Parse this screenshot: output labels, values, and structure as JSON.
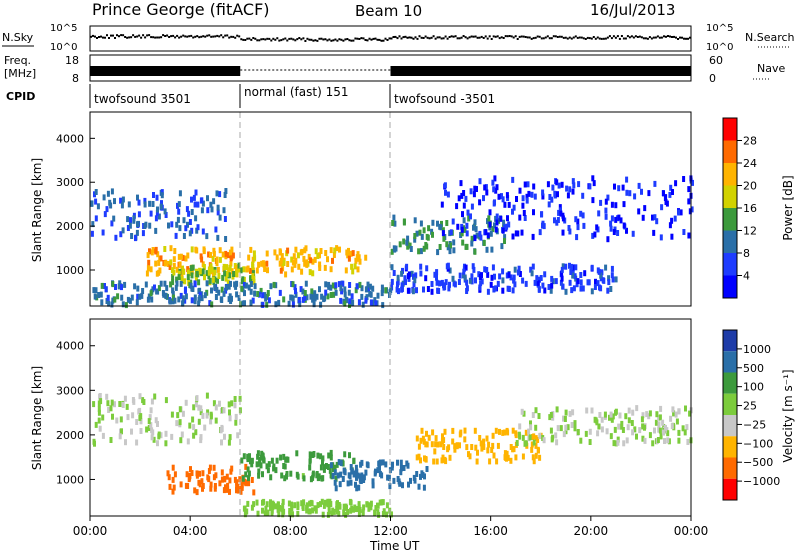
{
  "header": {
    "station": "Prince George (fitACF)",
    "beam": "Beam 10",
    "date": "16/Jul/2013"
  },
  "status_panels": {
    "nsky_label": "N.Sky",
    "nsearch_label": "N.Search",
    "noise_ticks": [
      "10^5",
      "10^0"
    ],
    "freq_label_top": "Freq.",
    "freq_label_unit": "[MHz]",
    "freq_ticks": [
      "18",
      "8"
    ],
    "nave_label": "Nave",
    "nave_ticks": [
      "60",
      "0"
    ],
    "cpid_label": "CPID",
    "cpid_segments": [
      {
        "label": "twofsound 3501",
        "start_hour": 0,
        "end_hour": 6
      },
      {
        "label": "normal (fast) 151",
        "start_hour": 6,
        "end_hour": 12
      },
      {
        "label": "twofsound -3501",
        "start_hour": 12,
        "end_hour": 24
      }
    ]
  },
  "axes": {
    "ylabel": "Slant Range [km]",
    "xlabel": "Time UT",
    "y_ticks": [
      "4000",
      "3000",
      "2000",
      "1000"
    ],
    "x_ticks": [
      "00:00",
      "04:00",
      "08:00",
      "12:00",
      "16:00",
      "20:00",
      "00:00"
    ]
  },
  "power_colorbar": {
    "label": "Power [dB]",
    "ticks": [
      "28",
      "24",
      "20",
      "16",
      "12",
      "8",
      "4"
    ],
    "colors": [
      "#ff0000",
      "#ff6a00",
      "#ffb400",
      "#d2d200",
      "#3c9a3c",
      "#2a6fa8",
      "#1e3cff",
      "#0000ff"
    ]
  },
  "velocity_colorbar": {
    "label": "Velocity [m s⁻¹]",
    "ticks": [
      "1000",
      "500",
      "100",
      "25",
      "−25",
      "−100",
      "−500",
      "−1000"
    ],
    "colors": [
      "#1e3ca8",
      "#2a6fa8",
      "#3c9a3c",
      "#7ccc3c",
      "#c8c8c8",
      "#ffb400",
      "#ff6a00",
      "#ff0000"
    ]
  },
  "chart_data": [
    {
      "type": "heatmap",
      "title": "Power [dB]",
      "xlabel": "Time UT",
      "ylabel": "Slant Range [km]",
      "xlim": [
        0,
        24
      ],
      "ylim": [
        180,
        4600
      ],
      "regions": [
        {
          "t0": 2.2,
          "t1": 11.0,
          "r0": 900,
          "r1": 1500,
          "value": 24
        },
        {
          "t0": 3.2,
          "t1": 6.5,
          "r0": 700,
          "r1": 1100,
          "value": 18
        },
        {
          "t0": 0.0,
          "t1": 5.5,
          "r0": 1700,
          "r1": 2800,
          "value": 10
        },
        {
          "t0": 12.0,
          "t1": 16.5,
          "r0": 1400,
          "r1": 2200,
          "value": 14
        },
        {
          "t0": 14.0,
          "t1": 24.0,
          "r0": 1700,
          "r1": 3100,
          "value": 6
        },
        {
          "t0": 0.0,
          "t1": 12.0,
          "r0": 200,
          "r1": 700,
          "value": 12
        },
        {
          "t0": 12.0,
          "t1": 21.0,
          "r0": 500,
          "r1": 1100,
          "value": 8
        }
      ]
    },
    {
      "type": "heatmap",
      "title": "Velocity [m s⁻¹]",
      "xlabel": "Time UT",
      "ylabel": "Slant Range [km]",
      "xlim": [
        0,
        24
      ],
      "ylim": [
        180,
        4600
      ],
      "regions": [
        {
          "t0": 3.0,
          "t1": 6.5,
          "r0": 700,
          "r1": 1300,
          "value": -500
        },
        {
          "t0": 6.0,
          "t1": 10.5,
          "r0": 1000,
          "r1": 1600,
          "value": 100
        },
        {
          "t0": 9.5,
          "t1": 13.5,
          "r0": 800,
          "r1": 1400,
          "value": 500
        },
        {
          "t0": 13.0,
          "t1": 18.0,
          "r0": 1400,
          "r1": 2100,
          "value": -100
        },
        {
          "t0": 0.0,
          "t1": 6.0,
          "r0": 1800,
          "r1": 2900,
          "value": 0
        },
        {
          "t0": 17.0,
          "t1": 24.0,
          "r0": 1800,
          "r1": 2600,
          "value": 0
        },
        {
          "t0": 6.0,
          "t1": 12.0,
          "r0": 200,
          "r1": 500,
          "value": 25
        }
      ]
    }
  ]
}
